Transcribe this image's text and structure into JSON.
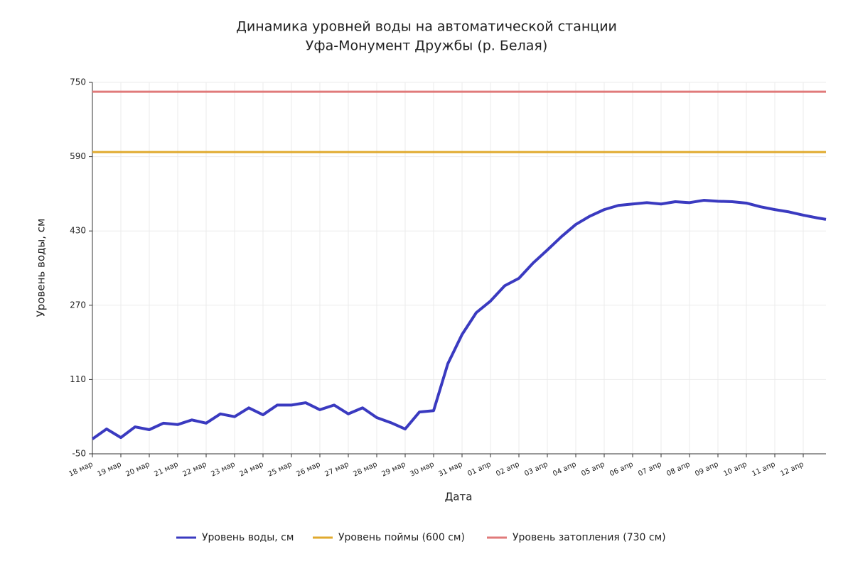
{
  "chart_data": {
    "type": "line",
    "title": "Динамика уровней воды на автоматической станции",
    "subtitle": "Уфа-Монумент Дружбы (р. Белая)",
    "xlabel": "Дата",
    "ylabel": "Уровень воды, см",
    "x": [
      0,
      0.5,
      1,
      1.5,
      2,
      2.5,
      3,
      3.5,
      4,
      4.5,
      5,
      5.5,
      6,
      6.5,
      7,
      7.5,
      8,
      8.5,
      9,
      9.5,
      10,
      10.5,
      11,
      11.5,
      12,
      12.5,
      13,
      13.5,
      14,
      14.5,
      15,
      15.5,
      16,
      16.5,
      17,
      17.5,
      18,
      18.5,
      19,
      19.5,
      20,
      20.5,
      21,
      21.5,
      22,
      22.5,
      23,
      23.5,
      24,
      24.5,
      25,
      25.5,
      25.8
    ],
    "series": [
      {
        "name": "Уровень воды, см",
        "color": "#3a3ac0",
        "values": [
          -18,
          3.5,
          -15,
          8,
          2,
          16,
          13,
          23,
          16,
          36,
          30,
          49,
          34,
          55,
          55,
          60,
          45,
          55,
          36,
          49,
          28,
          17,
          3.5,
          40,
          43,
          144,
          207,
          254,
          279,
          312,
          328,
          361,
          389,
          418,
          444,
          462,
          476,
          485,
          488,
          491,
          488,
          493,
          491,
          496,
          494,
          493,
          490,
          482,
          476,
          471,
          464,
          458,
          455
        ]
      }
    ],
    "hlines": [
      {
        "name": "Уровень поймы (600 см)",
        "color": "#e0aa2e",
        "value": 600
      },
      {
        "name": "Уровень затопления (730 см)",
        "color": "#e07a7a",
        "value": 730
      }
    ],
    "xlim": [
      0,
      25.8
    ],
    "xticks": [
      {
        "value": 0,
        "label": "18 мар"
      },
      {
        "value": 1,
        "label": "19 мар"
      },
      {
        "value": 2,
        "label": "20 мар"
      },
      {
        "value": 3,
        "label": "21 мар"
      },
      {
        "value": 4,
        "label": "22 мар"
      },
      {
        "value": 5,
        "label": "23 мар"
      },
      {
        "value": 6,
        "label": "24 мар"
      },
      {
        "value": 7,
        "label": "25 мар"
      },
      {
        "value": 8,
        "label": "26 мар"
      },
      {
        "value": 9,
        "label": "27 мар"
      },
      {
        "value": 10,
        "label": "28 мар"
      },
      {
        "value": 11,
        "label": "29 мар"
      },
      {
        "value": 12,
        "label": "30 мар"
      },
      {
        "value": 13,
        "label": "31 мар"
      },
      {
        "value": 14,
        "label": "01 апр"
      },
      {
        "value": 15,
        "label": "02 апр"
      },
      {
        "value": 16,
        "label": "03 апр"
      },
      {
        "value": 17,
        "label": "04 апр"
      },
      {
        "value": 18,
        "label": "05 апр"
      },
      {
        "value": 19,
        "label": "06 апр"
      },
      {
        "value": 20,
        "label": "07 апр"
      },
      {
        "value": 21,
        "label": "08 апр"
      },
      {
        "value": 22,
        "label": "09 апр"
      },
      {
        "value": 23,
        "label": "10 апр"
      },
      {
        "value": 24,
        "label": "11 апр"
      },
      {
        "value": 25,
        "label": "12 апр"
      }
    ],
    "ylim": [
      -50,
      750
    ],
    "yticks": [
      -50,
      110,
      270,
      430,
      590,
      750
    ],
    "grid": true
  }
}
